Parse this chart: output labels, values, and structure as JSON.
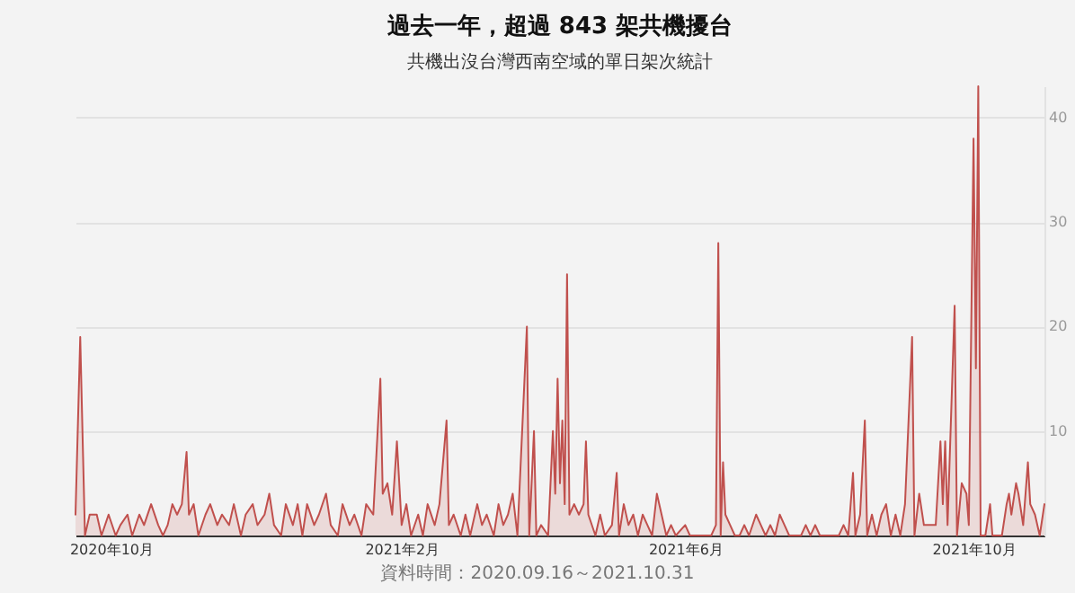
{
  "chart_data": {
    "type": "area",
    "title": "過去一年，超過 843 架共機擾台",
    "subtitle": "共機出沒台灣西南空域的單日架次統計",
    "annotations": [
      "資料時間：2020.09.16～2021.10.31"
    ],
    "x": [
      "2020-09-16",
      "2020-09-18",
      "2020-09-20",
      "2020-09-22",
      "2020-09-25",
      "2020-09-27",
      "2020-09-30",
      "2020-10-03",
      "2020-10-05",
      "2020-10-08",
      "2020-10-10",
      "2020-10-13",
      "2020-10-15",
      "2020-10-18",
      "2020-10-21",
      "2020-10-23",
      "2020-10-25",
      "2020-10-27",
      "2020-10-29",
      "2020-10-31",
      "2020-11-02",
      "2020-11-03",
      "2020-11-05",
      "2020-11-07",
      "2020-11-10",
      "2020-11-12",
      "2020-11-15",
      "2020-11-17",
      "2020-11-20",
      "2020-11-22",
      "2020-11-25",
      "2020-11-27",
      "2020-11-30",
      "2020-12-02",
      "2020-12-05",
      "2020-12-07",
      "2020-12-09",
      "2020-12-12",
      "2020-12-14",
      "2020-12-17",
      "2020-12-19",
      "2020-12-21",
      "2020-12-23",
      "2020-12-26",
      "2020-12-28",
      "2020-12-31",
      "2021-01-02",
      "2021-01-05",
      "2021-01-07",
      "2021-01-10",
      "2021-01-12",
      "2021-01-15",
      "2021-01-17",
      "2021-01-20",
      "2021-01-23",
      "2021-01-24",
      "2021-01-26",
      "2021-01-28",
      "2021-01-30",
      "2021-02-01",
      "2021-02-03",
      "2021-02-05",
      "2021-02-08",
      "2021-02-10",
      "2021-02-12",
      "2021-02-15",
      "2021-02-17",
      "2021-02-20",
      "2021-02-21",
      "2021-02-23",
      "2021-02-26",
      "2021-02-28",
      "2021-03-02",
      "2021-03-05",
      "2021-03-07",
      "2021-03-09",
      "2021-03-12",
      "2021-03-14",
      "2021-03-16",
      "2021-03-18",
      "2021-03-20",
      "2021-03-22",
      "2021-03-26",
      "2021-03-27",
      "2021-03-29",
      "2021-03-30",
      "2021-04-01",
      "2021-04-04",
      "2021-04-06",
      "2021-04-07",
      "2021-04-08",
      "2021-04-09",
      "2021-04-10",
      "2021-04-11",
      "2021-04-12",
      "2021-04-13",
      "2021-04-15",
      "2021-04-17",
      "2021-04-19",
      "2021-04-20",
      "2021-04-21",
      "2021-04-24",
      "2021-04-26",
      "2021-04-28",
      "2021-05-01",
      "2021-05-03",
      "2021-05-04",
      "2021-05-06",
      "2021-05-08",
      "2021-05-10",
      "2021-05-12",
      "2021-05-14",
      "2021-05-16",
      "2021-05-18",
      "2021-05-20",
      "2021-05-22",
      "2021-05-24",
      "2021-05-26",
      "2021-05-28",
      "2021-06-01",
      "2021-06-03",
      "2021-06-05",
      "2021-06-12",
      "2021-06-14",
      "2021-06-15",
      "2021-06-16",
      "2021-06-17",
      "2021-06-18",
      "2021-06-20",
      "2021-06-22",
      "2021-06-24",
      "2021-06-26",
      "2021-06-28",
      "2021-07-01",
      "2021-07-03",
      "2021-07-05",
      "2021-07-07",
      "2021-07-09",
      "2021-07-11",
      "2021-07-13",
      "2021-07-15",
      "2021-07-20",
      "2021-07-22",
      "2021-07-24",
      "2021-07-26",
      "2021-07-28",
      "2021-08-01",
      "2021-08-05",
      "2021-08-07",
      "2021-08-09",
      "2021-08-11",
      "2021-08-12",
      "2021-08-14",
      "2021-08-16",
      "2021-08-17",
      "2021-08-19",
      "2021-08-21",
      "2021-08-23",
      "2021-08-25",
      "2021-08-27",
      "2021-08-29",
      "2021-08-31",
      "2021-09-02",
      "2021-09-05",
      "2021-09-06",
      "2021-09-08",
      "2021-09-10",
      "2021-09-12",
      "2021-09-15",
      "2021-09-17",
      "2021-09-18",
      "2021-09-19",
      "2021-09-20",
      "2021-09-23",
      "2021-09-24",
      "2021-09-26",
      "2021-09-28",
      "2021-09-29",
      "2021-10-01",
      "2021-10-02",
      "2021-10-03",
      "2021-10-04",
      "2021-10-06",
      "2021-10-08",
      "2021-10-09",
      "2021-10-11",
      "2021-10-13",
      "2021-10-15",
      "2021-10-16",
      "2021-10-17",
      "2021-10-19",
      "2021-10-20",
      "2021-10-22",
      "2021-10-24",
      "2021-10-25",
      "2021-10-27",
      "2021-10-29",
      "2021-10-31"
    ],
    "series": [
      {
        "color": "#c0504d",
        "values": [
          2,
          19,
          0,
          2,
          2,
          0,
          2,
          0,
          1,
          2,
          0,
          2,
          1,
          3,
          1,
          0,
          1,
          3,
          2,
          3,
          8,
          2,
          3,
          0,
          2,
          3,
          1,
          2,
          1,
          3,
          0,
          2,
          3,
          1,
          2,
          4,
          1,
          0,
          3,
          1,
          3,
          0,
          3,
          1,
          2,
          4,
          1,
          0,
          3,
          1,
          2,
          0,
          3,
          2,
          15,
          4,
          5,
          2,
          9,
          1,
          3,
          0,
          2,
          0,
          3,
          1,
          3,
          11,
          1,
          2,
          0,
          2,
          0,
          3,
          1,
          2,
          0,
          3,
          1,
          2,
          4,
          0,
          20,
          0,
          10,
          0,
          1,
          0,
          10,
          4,
          15,
          5,
          11,
          3,
          25,
          2,
          3,
          2,
          3,
          9,
          2,
          0,
          2,
          0,
          1,
          6,
          0,
          3,
          1,
          2,
          0,
          2,
          1,
          0,
          4,
          2,
          0,
          1,
          0,
          1,
          0,
          0,
          0,
          1,
          28,
          0,
          7,
          2,
          1,
          0,
          0,
          1,
          0,
          2,
          1,
          0,
          1,
          0,
          2,
          1,
          0,
          0,
          1,
          0,
          1,
          0,
          0,
          0,
          1,
          0,
          6,
          0,
          2,
          11,
          0,
          2,
          0,
          2,
          3,
          0,
          2,
          0,
          3,
          19,
          0,
          4,
          1,
          1,
          1,
          9,
          3,
          9,
          1,
          22,
          0,
          5,
          4,
          1,
          38,
          16,
          43,
          0,
          0,
          3,
          0,
          0,
          0,
          3,
          4,
          2,
          5,
          4,
          1,
          7,
          3,
          2,
          0,
          3
        ]
      }
    ],
    "xlim": [
      "2020-09-16",
      "2021-10-31"
    ],
    "xticks": [
      {
        "value": "2020-10-01",
        "label": "2020年10月"
      },
      {
        "value": "2021-02-01",
        "label": "2021年2月"
      },
      {
        "value": "2021-06-01",
        "label": "2021年6月"
      },
      {
        "value": "2021-10-01",
        "label": "2021年10月"
      }
    ],
    "ylim": [
      0,
      43
    ],
    "yticks": [
      10,
      20,
      30,
      40
    ],
    "grid": "y"
  }
}
